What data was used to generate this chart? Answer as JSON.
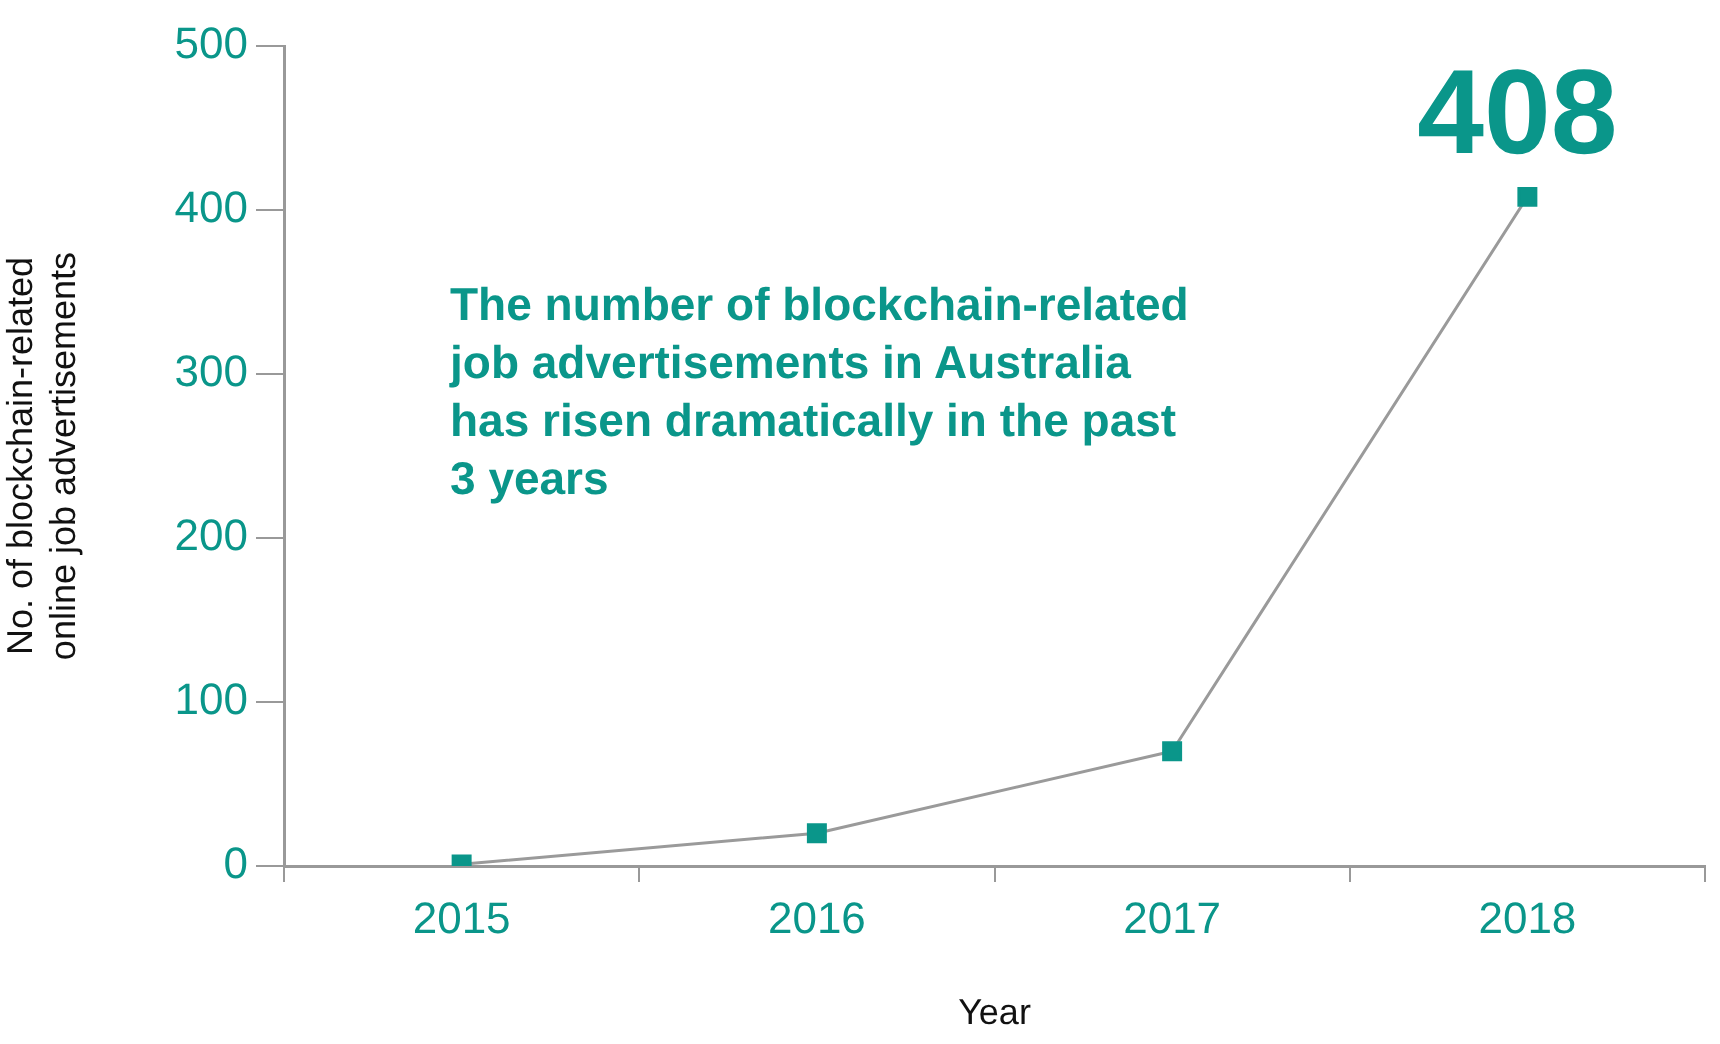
{
  "chart_data": {
    "type": "line",
    "xlabel": "Year",
    "ylabel": "No. of blockchain-related\nonline job advertisements",
    "categories": [
      "2015",
      "2016",
      "2017",
      "2018"
    ],
    "series": [
      {
        "color": "#0a968a",
        "values": [
          1,
          20,
          70,
          408
        ],
        "value_labels": [
          null,
          null,
          null,
          "408"
        ]
      }
    ],
    "ylim": [
      0,
      500
    ],
    "yticks": [
      0,
      100,
      200,
      300,
      400,
      500
    ],
    "grid": false,
    "legend": false,
    "marker": "square",
    "line_style": "solid",
    "annotations": [
      "The number of blockchain-related job advertisements in Australia has risen dramatically in the past 3 years"
    ]
  }
}
